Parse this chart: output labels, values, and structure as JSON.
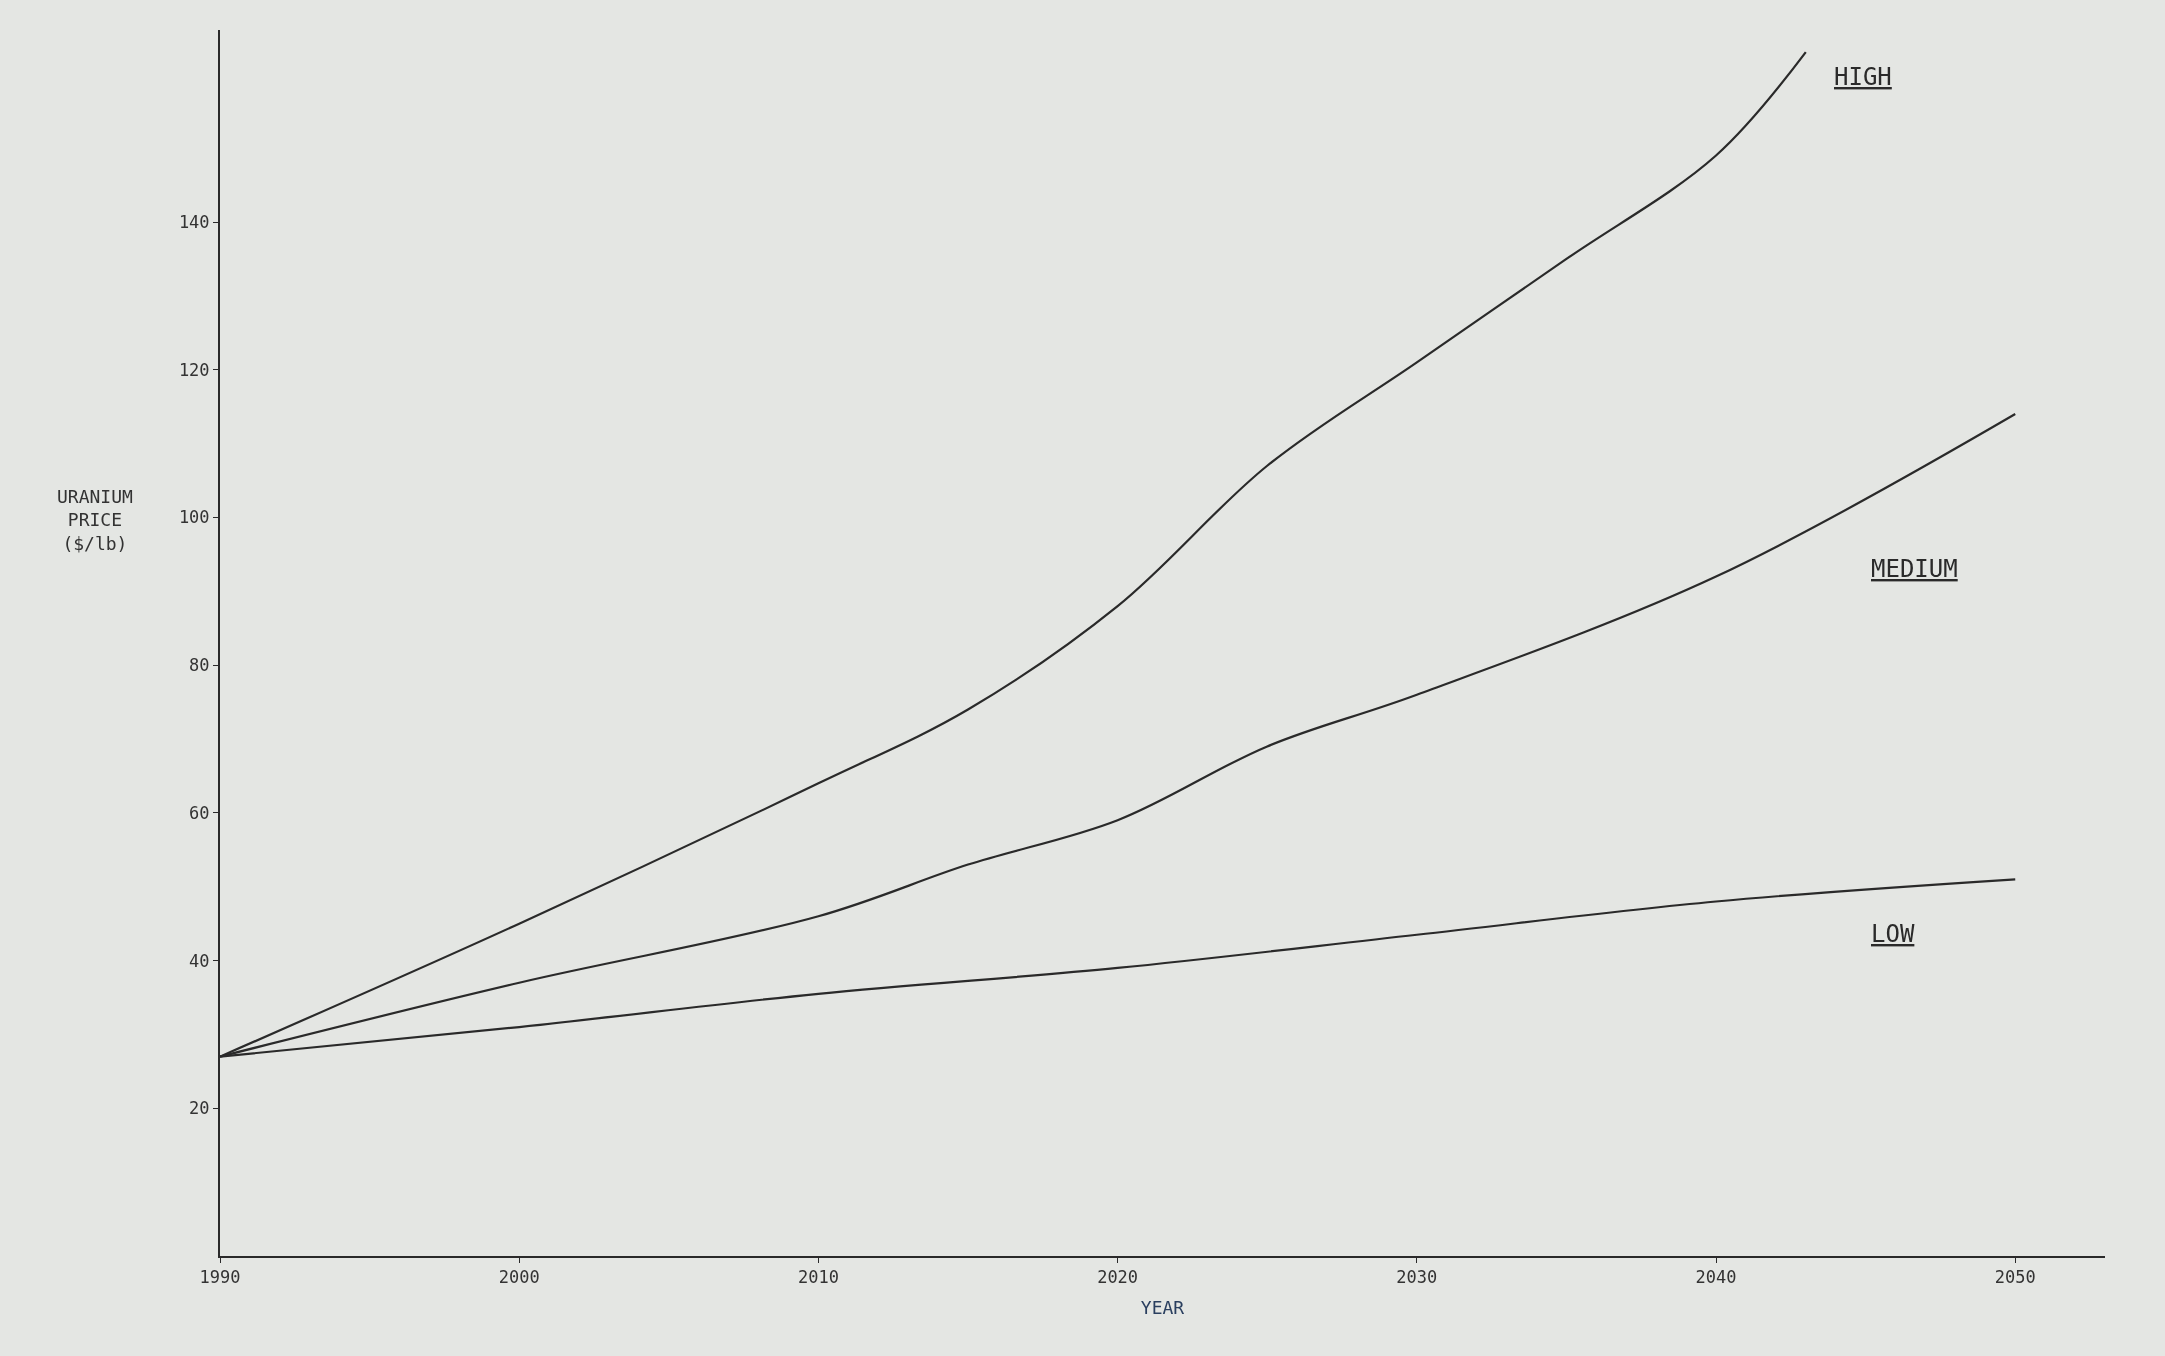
{
  "chart_data": {
    "type": "line",
    "xlabel": "YEAR",
    "ylabel": "URANIUM\nPRICE\n($/lb)",
    "xlim": [
      1990,
      2053
    ],
    "ylim": [
      0,
      166
    ],
    "xticks": [
      1990,
      2000,
      2010,
      2020,
      2030,
      2040,
      2050
    ],
    "yticks": [
      20,
      40,
      60,
      80,
      100,
      120,
      140
    ],
    "grid": false,
    "marker": "none",
    "line_style": "solid",
    "series": [
      {
        "name": "HIGH",
        "color": "#2a2a2a",
        "x": [
          1990,
          2000,
          2010,
          2015,
          2020,
          2025,
          2030,
          2035,
          2040,
          2043
        ],
        "values": [
          27,
          45,
          64,
          74,
          88,
          107,
          121,
          135,
          149,
          163
        ]
      },
      {
        "name": "MEDIUM",
        "color": "#2a2a2a",
        "x": [
          1990,
          2000,
          2010,
          2015,
          2020,
          2025,
          2030,
          2040,
          2050
        ],
        "values": [
          27,
          37,
          46,
          53,
          59,
          69,
          76,
          92,
          114
        ]
      },
      {
        "name": "LOW",
        "color": "#2a2a2a",
        "x": [
          1990,
          2000,
          2010,
          2020,
          2030,
          2040,
          2050
        ],
        "values": [
          27,
          31,
          35.5,
          39,
          43.5,
          48,
          51
        ]
      }
    ]
  }
}
